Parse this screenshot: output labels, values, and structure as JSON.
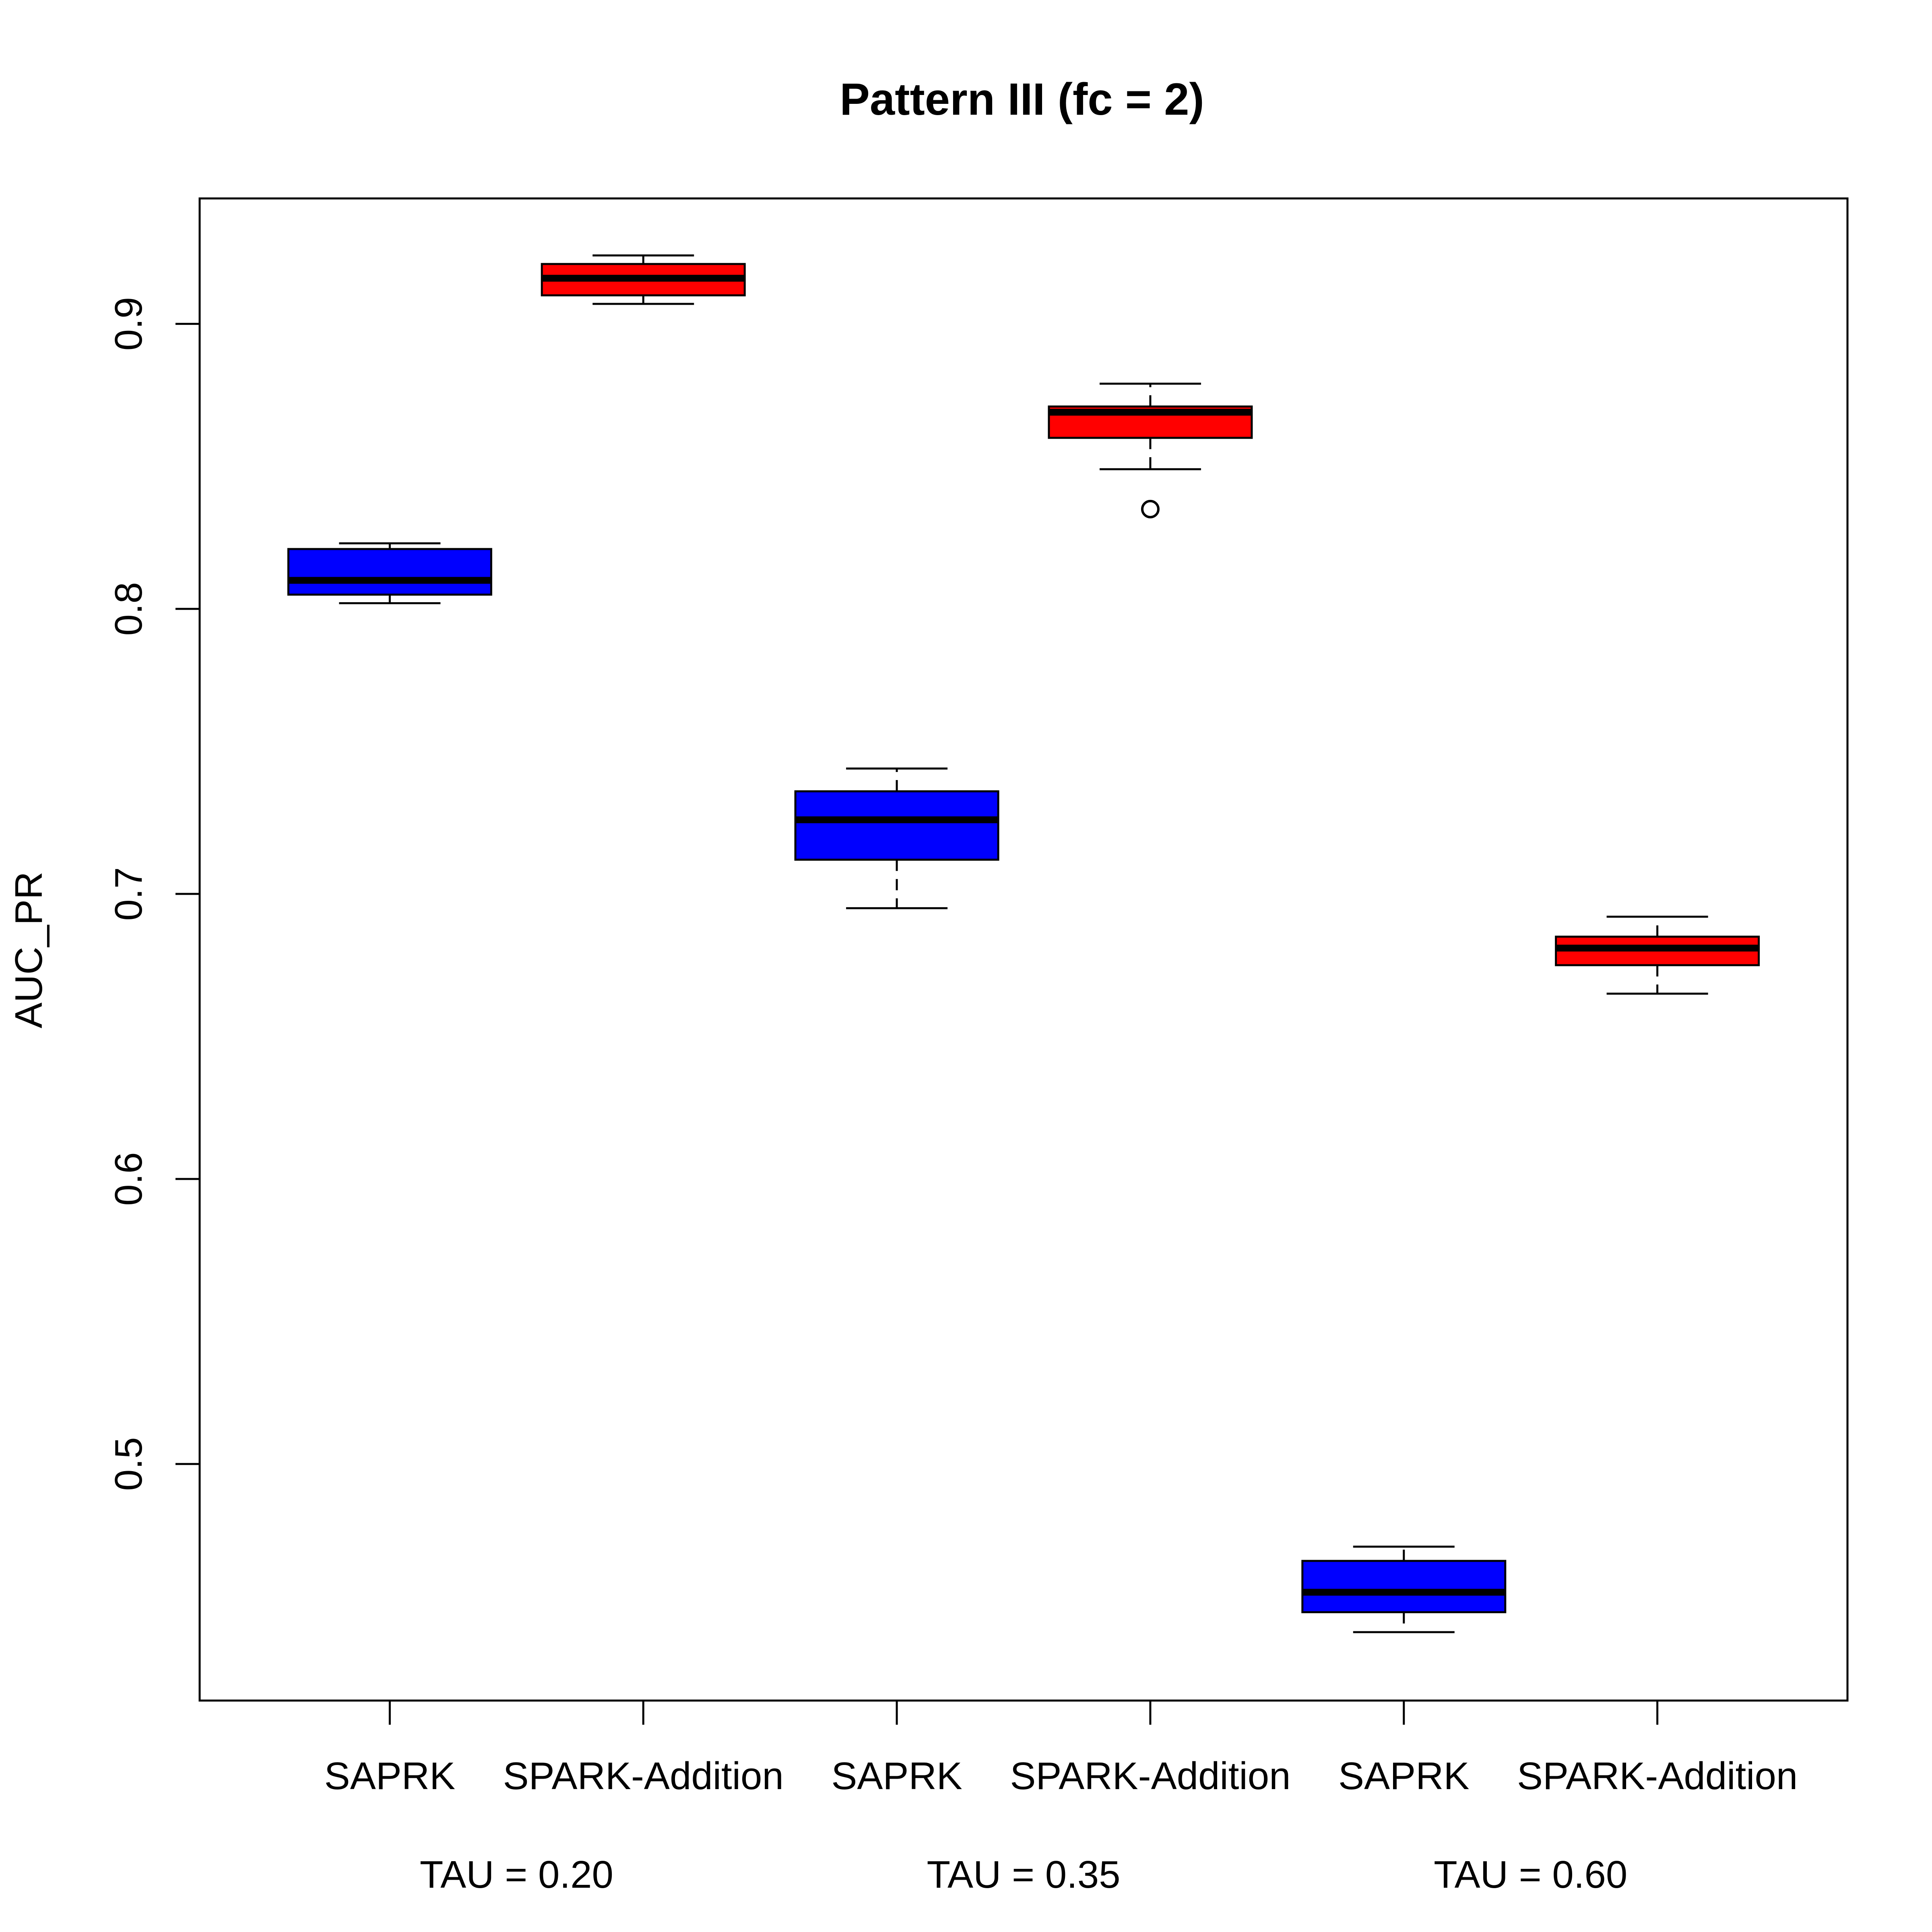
{
  "chart_data": {
    "type": "boxplot",
    "title": "Pattern III (fc = 2)",
    "xlabel": "",
    "ylabel": "AUC_PR",
    "ylim": [
      0.417,
      0.944
    ],
    "yticks": [
      0.5,
      0.6,
      0.7,
      0.8,
      0.9
    ],
    "ytick_labels": [
      "0.5",
      "0.6",
      "0.7",
      "0.8",
      "0.9"
    ],
    "grid": false,
    "legend": "none",
    "categories": [
      "SAPRK",
      "SPARK-Addition",
      "SAPRK",
      "SPARK-Addition",
      "SAPRK",
      "SPARK-Addition"
    ],
    "groups": [
      {
        "label": "TAU = 0.20",
        "categories": [
          0,
          1
        ]
      },
      {
        "label": "TAU = 0.35",
        "categories": [
          2,
          3
        ]
      },
      {
        "label": "TAU = 0.60",
        "categories": [
          4,
          5
        ]
      }
    ],
    "colors": {
      "SAPRK": "#0000FF",
      "SPARK-Addition": "#FF0000",
      "median": "#000000",
      "outline": "#000000"
    },
    "boxes": [
      {
        "category": "SAPRK",
        "group": "TAU = 0.20",
        "whisker_low": 0.802,
        "q1": 0.805,
        "median": 0.81,
        "q3": 0.821,
        "whisker_high": 0.823,
        "outliers": []
      },
      {
        "category": "SPARK-Addition",
        "group": "TAU = 0.20",
        "whisker_low": 0.907,
        "q1": 0.91,
        "median": 0.916,
        "q3": 0.921,
        "whisker_high": 0.924,
        "outliers": []
      },
      {
        "category": "SAPRK",
        "group": "TAU = 0.35",
        "whisker_low": 0.695,
        "q1": 0.712,
        "median": 0.726,
        "q3": 0.736,
        "whisker_high": 0.744,
        "outliers": []
      },
      {
        "category": "SPARK-Addition",
        "group": "TAU = 0.35",
        "whisker_low": 0.849,
        "q1": 0.86,
        "median": 0.869,
        "q3": 0.871,
        "whisker_high": 0.879,
        "outliers": [
          0.835
        ]
      },
      {
        "category": "SAPRK",
        "group": "TAU = 0.60",
        "whisker_low": 0.441,
        "q1": 0.448,
        "median": 0.455,
        "q3": 0.466,
        "whisker_high": 0.471,
        "outliers": []
      },
      {
        "category": "SPARK-Addition",
        "group": "TAU = 0.60",
        "whisker_low": 0.665,
        "q1": 0.675,
        "median": 0.681,
        "q3": 0.685,
        "whisker_high": 0.692,
        "outliers": []
      }
    ]
  }
}
